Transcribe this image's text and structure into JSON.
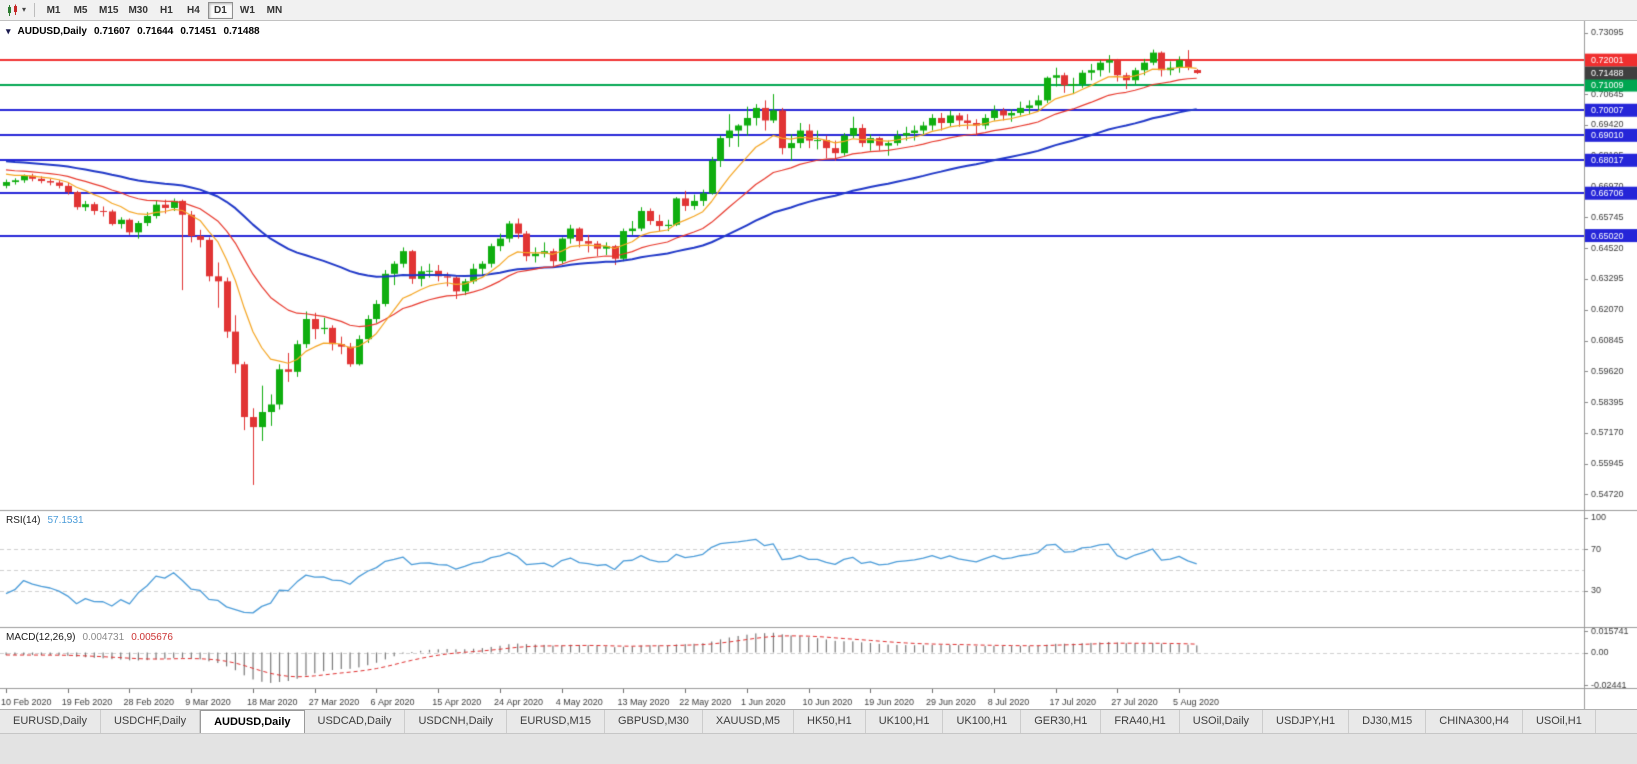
{
  "toolbar": {
    "timeframes": [
      {
        "label": "M1",
        "active": false
      },
      {
        "label": "M5",
        "active": false
      },
      {
        "label": "M15",
        "active": false
      },
      {
        "label": "M30",
        "active": false
      },
      {
        "label": "H1",
        "active": false
      },
      {
        "label": "H4",
        "active": false
      },
      {
        "label": "D1",
        "active": true
      },
      {
        "label": "W1",
        "active": false
      },
      {
        "label": "MN",
        "active": false
      }
    ]
  },
  "chart": {
    "symbol_timeframe": "AUDUSD,Daily",
    "open": "0.71607",
    "high": "0.71644",
    "low": "0.71451",
    "close": "0.71488"
  },
  "price_axis": {
    "top_price": 0.732,
    "bottom_price": 0.545,
    "labels": [
      "0.73095",
      "0.71870",
      "0.70645",
      "0.69420",
      "0.68195",
      "0.66970",
      "0.65745",
      "0.64520",
      "0.63295",
      "0.62070",
      "0.60845",
      "0.59620",
      "0.58395",
      "0.57170",
      "0.55945",
      "0.54720"
    ]
  },
  "horizontal_lines": [
    {
      "price": 0.72001,
      "label": "0.72001",
      "color": "#f02f2f",
      "width": 2
    },
    {
      "price": 0.71009,
      "label": "0.71009",
      "color": "#00a651",
      "width": 2
    },
    {
      "price": 0.70007,
      "label": "0.70007",
      "color": "#2525d8",
      "width": 2
    },
    {
      "price": 0.6901,
      "label": "0.69010",
      "color": "#2525d8",
      "width": 2
    },
    {
      "price": 0.68017,
      "label": "0.68017",
      "color": "#2525d8",
      "width": 2
    },
    {
      "price": 0.66706,
      "label": "0.66706",
      "color": "#2525d8",
      "width": 2
    },
    {
      "price": 0.6502,
      "label": "0.65020",
      "color": "#2525d8",
      "width": 2
    }
  ],
  "current_price_tag": {
    "price": 0.71488,
    "label": "0.71488",
    "bg": "#3f3f3f"
  },
  "moving_averages": [
    {
      "period": 9,
      "color": "#f5a623",
      "width": 1.2
    },
    {
      "period": 21,
      "color": "#e8392d",
      "width": 1.2
    },
    {
      "period": 50,
      "color": "#2038c8",
      "width": 2
    }
  ],
  "rsi": {
    "name": "RSI(14)",
    "value": "57.1531",
    "line_color": "#4b9cd9",
    "levels": [
      70,
      50,
      30
    ],
    "axis_labels": [
      "100",
      "70",
      "30"
    ]
  },
  "macd": {
    "name": "MACD(12,26,9)",
    "value1": "0.004731",
    "value2": "0.005676",
    "hist_color": "#7a7a7a",
    "signal_color": "#e03030",
    "axis_labels": [
      "0.015741",
      "0.00",
      "-0.02441"
    ]
  },
  "date_axis": {
    "tick_step": 7,
    "labels": [
      "10 Feb 2020",
      "19 Feb 2020",
      "28 Feb 2020",
      "9 Mar 2020",
      "18 Mar 2020",
      "27 Mar 2020",
      "6 Apr 2020",
      "15 Apr 2020",
      "24 Apr 2020",
      "4 May 2020",
      "13 May 2020",
      "22 May 2020",
      "1 Jun 2020",
      "10 Jun 2020",
      "19 Jun 2020",
      "29 Jun 2020",
      "8 Jul 2020",
      "17 Jul 2020",
      "27 Jul 2020",
      "5 Aug 2020"
    ]
  },
  "tabs": [
    {
      "label": "EURUSD,Daily",
      "active": false
    },
    {
      "label": "USDCHF,Daily",
      "active": false
    },
    {
      "label": "AUDUSD,Daily",
      "active": true
    },
    {
      "label": "USDCAD,Daily",
      "active": false
    },
    {
      "label": "USDCNH,Daily",
      "active": false
    },
    {
      "label": "EURUSD,M15",
      "active": false
    },
    {
      "label": "GBPUSD,M30",
      "active": false
    },
    {
      "label": "XAUUSD,M5",
      "active": false
    },
    {
      "label": "HK50,H1",
      "active": false
    },
    {
      "label": "UK100,H1",
      "active": false
    },
    {
      "label": "UK100,H1",
      "active": false
    },
    {
      "label": "GER30,H1",
      "active": false
    },
    {
      "label": "FRA40,H1",
      "active": false
    },
    {
      "label": "USOil,Daily",
      "active": false
    },
    {
      "label": "USDJPY,H1",
      "active": false
    },
    {
      "label": "DJ30,M15",
      "active": false
    },
    {
      "label": "CHINA300,H4",
      "active": false
    },
    {
      "label": "USOil,H1",
      "active": false
    }
  ],
  "chart_data": {
    "type": "candlestick",
    "symbol": "AUDUSD",
    "timeframe": "Daily",
    "up_color": "#0fae0f",
    "down_color": "#e13434",
    "ohlc": [
      [
        0.67,
        0.6725,
        0.669,
        0.6715
      ],
      [
        0.6715,
        0.673,
        0.6705,
        0.6722
      ],
      [
        0.6722,
        0.6745,
        0.6712,
        0.674
      ],
      [
        0.674,
        0.6748,
        0.6718,
        0.6728
      ],
      [
        0.6728,
        0.6738,
        0.671,
        0.6719
      ],
      [
        0.6719,
        0.6728,
        0.6702,
        0.6713
      ],
      [
        0.6713,
        0.6722,
        0.669,
        0.67
      ],
      [
        0.67,
        0.6712,
        0.6665,
        0.6675
      ],
      [
        0.6675,
        0.668,
        0.6605,
        0.6615
      ],
      [
        0.6615,
        0.664,
        0.66,
        0.6627
      ],
      [
        0.6627,
        0.6635,
        0.6585,
        0.66
      ],
      [
        0.66,
        0.6618,
        0.6578,
        0.6598
      ],
      [
        0.6598,
        0.6605,
        0.6542,
        0.6548
      ],
      [
        0.6548,
        0.6575,
        0.653,
        0.6565
      ],
      [
        0.6565,
        0.657,
        0.6505,
        0.6515
      ],
      [
        0.6515,
        0.656,
        0.649,
        0.6552
      ],
      [
        0.6552,
        0.6595,
        0.654,
        0.658
      ],
      [
        0.658,
        0.664,
        0.657,
        0.6625
      ],
      [
        0.6625,
        0.6645,
        0.659,
        0.6612
      ],
      [
        0.6612,
        0.665,
        0.66,
        0.664
      ],
      [
        0.664,
        0.6645,
        0.6285,
        0.6585
      ],
      [
        0.6585,
        0.66,
        0.6475,
        0.65
      ],
      [
        0.65,
        0.6525,
        0.6455,
        0.6485
      ],
      [
        0.6485,
        0.6495,
        0.632,
        0.634
      ],
      [
        0.634,
        0.6395,
        0.6215,
        0.632
      ],
      [
        0.632,
        0.6335,
        0.6095,
        0.612
      ],
      [
        0.612,
        0.6185,
        0.5955,
        0.599
      ],
      [
        0.599,
        0.6,
        0.5728,
        0.578
      ],
      [
        0.578,
        0.5815,
        0.551,
        0.574
      ],
      [
        0.574,
        0.5905,
        0.5685,
        0.58
      ],
      [
        0.58,
        0.587,
        0.5745,
        0.583
      ],
      [
        0.583,
        0.599,
        0.581,
        0.597
      ],
      [
        0.597,
        0.6035,
        0.592,
        0.596
      ],
      [
        0.596,
        0.6085,
        0.594,
        0.607
      ],
      [
        0.607,
        0.62,
        0.6055,
        0.617
      ],
      [
        0.617,
        0.6195,
        0.609,
        0.613
      ],
      [
        0.613,
        0.6175,
        0.611,
        0.6135
      ],
      [
        0.6135,
        0.6145,
        0.6045,
        0.607
      ],
      [
        0.607,
        0.61,
        0.603,
        0.606
      ],
      [
        0.606,
        0.6075,
        0.598,
        0.599
      ],
      [
        0.599,
        0.6105,
        0.5985,
        0.609
      ],
      [
        0.609,
        0.6185,
        0.6075,
        0.617
      ],
      [
        0.617,
        0.6245,
        0.6155,
        0.623
      ],
      [
        0.623,
        0.6365,
        0.622,
        0.635
      ],
      [
        0.635,
        0.64,
        0.6305,
        0.639
      ],
      [
        0.639,
        0.6455,
        0.6375,
        0.644
      ],
      [
        0.644,
        0.6445,
        0.631,
        0.633
      ],
      [
        0.633,
        0.638,
        0.63,
        0.636
      ],
      [
        0.636,
        0.639,
        0.6335,
        0.6362
      ],
      [
        0.6362,
        0.6385,
        0.632,
        0.634
      ],
      [
        0.634,
        0.6355,
        0.63,
        0.6335
      ],
      [
        0.6335,
        0.634,
        0.625,
        0.628
      ],
      [
        0.628,
        0.633,
        0.6265,
        0.632
      ],
      [
        0.632,
        0.639,
        0.631,
        0.637
      ],
      [
        0.637,
        0.64,
        0.634,
        0.639
      ],
      [
        0.639,
        0.647,
        0.6375,
        0.646
      ],
      [
        0.646,
        0.651,
        0.644,
        0.649
      ],
      [
        0.649,
        0.656,
        0.6475,
        0.655
      ],
      [
        0.655,
        0.657,
        0.649,
        0.651
      ],
      [
        0.651,
        0.652,
        0.64,
        0.642
      ],
      [
        0.642,
        0.6455,
        0.6395,
        0.643
      ],
      [
        0.643,
        0.6475,
        0.6415,
        0.644
      ],
      [
        0.644,
        0.645,
        0.6375,
        0.64
      ],
      [
        0.64,
        0.6495,
        0.639,
        0.649
      ],
      [
        0.649,
        0.6545,
        0.647,
        0.653
      ],
      [
        0.653,
        0.6535,
        0.6455,
        0.648
      ],
      [
        0.648,
        0.6505,
        0.6435,
        0.647
      ],
      [
        0.647,
        0.648,
        0.642,
        0.645
      ],
      [
        0.645,
        0.6475,
        0.6425,
        0.646
      ],
      [
        0.646,
        0.6465,
        0.6385,
        0.641
      ],
      [
        0.641,
        0.653,
        0.64,
        0.652
      ],
      [
        0.652,
        0.656,
        0.6505,
        0.653
      ],
      [
        0.653,
        0.6615,
        0.652,
        0.66
      ],
      [
        0.66,
        0.661,
        0.6545,
        0.656
      ],
      [
        0.656,
        0.6585,
        0.652,
        0.654
      ],
      [
        0.654,
        0.6565,
        0.652,
        0.6545
      ],
      [
        0.6545,
        0.6655,
        0.654,
        0.665
      ],
      [
        0.665,
        0.668,
        0.66,
        0.662
      ],
      [
        0.662,
        0.6665,
        0.6605,
        0.664
      ],
      [
        0.664,
        0.6685,
        0.662,
        0.667
      ],
      [
        0.667,
        0.6815,
        0.6665,
        0.68
      ],
      [
        0.68,
        0.69,
        0.6775,
        0.689
      ],
      [
        0.689,
        0.6985,
        0.6855,
        0.692
      ],
      [
        0.692,
        0.6945,
        0.6855,
        0.694
      ],
      [
        0.694,
        0.7015,
        0.69,
        0.697
      ],
      [
        0.697,
        0.7025,
        0.694,
        0.701
      ],
      [
        0.701,
        0.704,
        0.692,
        0.696
      ],
      [
        0.696,
        0.7065,
        0.695,
        0.7
      ],
      [
        0.7,
        0.701,
        0.6825,
        0.685
      ],
      [
        0.685,
        0.6905,
        0.68,
        0.687
      ],
      [
        0.687,
        0.695,
        0.685,
        0.692
      ],
      [
        0.692,
        0.6945,
        0.685,
        0.688
      ],
      [
        0.688,
        0.692,
        0.6845,
        0.6882
      ],
      [
        0.6882,
        0.69,
        0.681,
        0.685
      ],
      [
        0.685,
        0.688,
        0.68,
        0.683
      ],
      [
        0.683,
        0.691,
        0.682,
        0.69
      ],
      [
        0.69,
        0.6975,
        0.689,
        0.693
      ],
      [
        0.693,
        0.6945,
        0.6855,
        0.687
      ],
      [
        0.687,
        0.6905,
        0.684,
        0.689
      ],
      [
        0.689,
        0.6895,
        0.684,
        0.686
      ],
      [
        0.686,
        0.688,
        0.682,
        0.687
      ],
      [
        0.687,
        0.692,
        0.686,
        0.69
      ],
      [
        0.69,
        0.6935,
        0.688,
        0.691
      ],
      [
        0.691,
        0.694,
        0.688,
        0.692
      ],
      [
        0.692,
        0.6955,
        0.69,
        0.694
      ],
      [
        0.694,
        0.6985,
        0.692,
        0.697
      ],
      [
        0.697,
        0.699,
        0.692,
        0.695
      ],
      [
        0.695,
        0.7,
        0.6935,
        0.698
      ],
      [
        0.698,
        0.699,
        0.6935,
        0.696
      ],
      [
        0.696,
        0.6985,
        0.6925,
        0.695
      ],
      [
        0.695,
        0.6965,
        0.69,
        0.694
      ],
      [
        0.694,
        0.6985,
        0.6925,
        0.697
      ],
      [
        0.697,
        0.702,
        0.696,
        0.7
      ],
      [
        0.7,
        0.701,
        0.696,
        0.698
      ],
      [
        0.698,
        0.7005,
        0.6955,
        0.699
      ],
      [
        0.699,
        0.7035,
        0.698,
        0.701
      ],
      [
        0.701,
        0.704,
        0.6985,
        0.702
      ],
      [
        0.702,
        0.706,
        0.7,
        0.704
      ],
      [
        0.704,
        0.7135,
        0.703,
        0.713
      ],
      [
        0.713,
        0.717,
        0.7095,
        0.714
      ],
      [
        0.714,
        0.715,
        0.707,
        0.71
      ],
      [
        0.71,
        0.713,
        0.7065,
        0.7105
      ],
      [
        0.7105,
        0.716,
        0.709,
        0.715
      ],
      [
        0.715,
        0.7185,
        0.712,
        0.716
      ],
      [
        0.716,
        0.72,
        0.7135,
        0.719
      ],
      [
        0.719,
        0.722,
        0.715,
        0.72
      ],
      [
        0.72,
        0.7205,
        0.7115,
        0.714
      ],
      [
        0.714,
        0.715,
        0.7085,
        0.712
      ],
      [
        0.712,
        0.717,
        0.7105,
        0.716
      ],
      [
        0.716,
        0.7205,
        0.714,
        0.719
      ],
      [
        0.719,
        0.7242,
        0.718,
        0.723
      ],
      [
        0.723,
        0.7235,
        0.7135,
        0.716
      ],
      [
        0.716,
        0.7195,
        0.714,
        0.717
      ],
      [
        0.717,
        0.7215,
        0.715,
        0.72
      ],
      [
        0.72,
        0.724,
        0.716,
        0.717
      ],
      [
        0.71607,
        0.71644,
        0.71451,
        0.71488
      ]
    ]
  }
}
